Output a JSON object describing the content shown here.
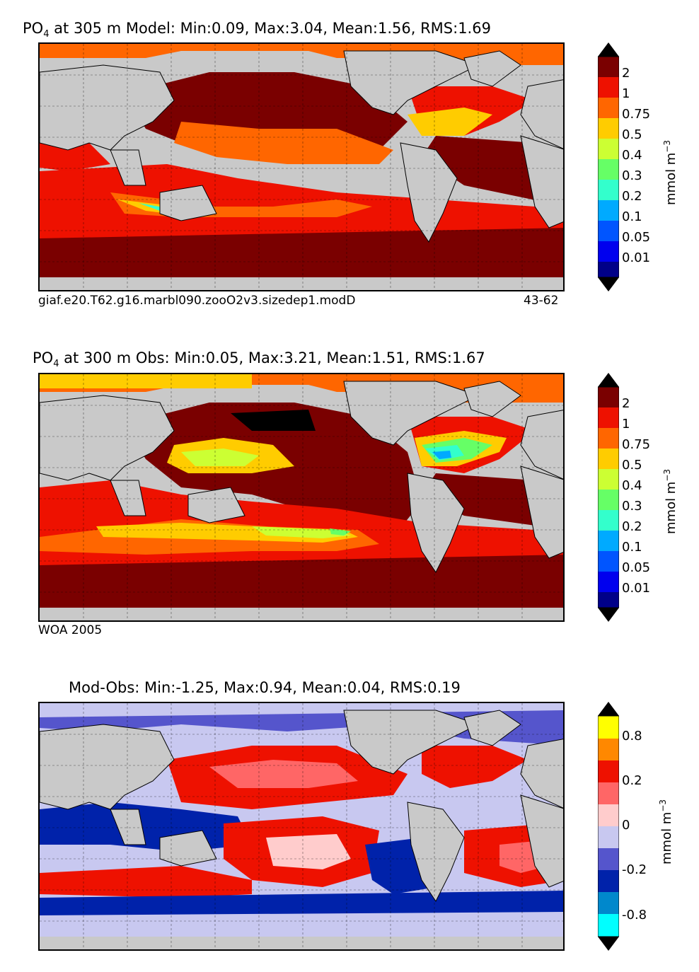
{
  "panels": [
    {
      "title_var": "PO",
      "title_sub": "4",
      "title_rest": " at 305 m Model: Min:0.09, Max:3.04, Mean:1.56, RMS:1.69",
      "left_note": "giaf.e20.T62.g16.marbl090.zooO2v3.sizedep1.modD",
      "right_note": "43-62",
      "colorbar": {
        "ticks": [
          "2",
          "1",
          "0.75",
          "0.5",
          "0.4",
          "0.3",
          "0.2",
          "0.1",
          "0.05",
          "0.01"
        ],
        "unit_text": "mmol m",
        "unit_exp": "−3",
        "colors": [
          "#000000",
          "#7a0000",
          "#ee1100",
          "#ff6600",
          "#ffcc00",
          "#ccff33",
          "#66ff66",
          "#33ffcc",
          "#00aaff",
          "#0055ff",
          "#0000ee",
          "#000088"
        ]
      }
    },
    {
      "title_var": "PO",
      "title_sub": "4",
      "title_rest": " at 300 m Obs: Min:0.05, Max:3.21, Mean:1.51, RMS:1.67",
      "left_note": "WOA 2005",
      "right_note": "",
      "colorbar": {
        "ticks": [
          "2",
          "1",
          "0.75",
          "0.5",
          "0.4",
          "0.3",
          "0.2",
          "0.1",
          "0.05",
          "0.01"
        ],
        "unit_text": "mmol m",
        "unit_exp": "−3",
        "colors": [
          "#000000",
          "#7a0000",
          "#ee1100",
          "#ff6600",
          "#ffcc00",
          "#ccff33",
          "#66ff66",
          "#33ffcc",
          "#00aaff",
          "#0055ff",
          "#0000ee",
          "#000088"
        ]
      }
    },
    {
      "title_var": "",
      "title_sub": "",
      "title_rest": "Mod-Obs: Min:-1.25, Max:0.94, Mean:0.04, RMS:0.19",
      "left_note": "",
      "right_note": "",
      "colorbar": {
        "ticks": [
          "0.8",
          "0.2",
          "0",
          "-0.2",
          "-0.8"
        ],
        "unit_text": "mmol m",
        "unit_exp": "−3",
        "colors": [
          "#000000",
          "#ffff00",
          "#ff8800",
          "#ee1100",
          "#ff6666",
          "#ffcccc",
          "#c8c8f0",
          "#5555cc",
          "#0022aa",
          "#0088cc",
          "#00ffff",
          "#000000"
        ]
      }
    }
  ]
}
